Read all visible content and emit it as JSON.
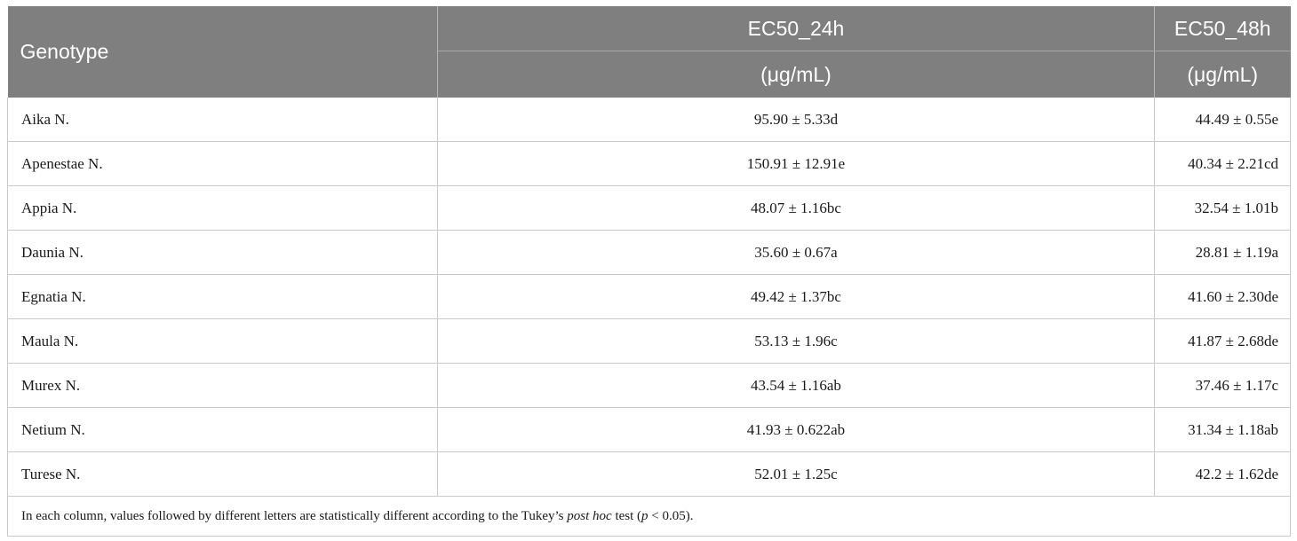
{
  "table": {
    "headers": {
      "genotype": "Genotype",
      "ec50_24h": "EC50_24h",
      "ec50_24h_unit": "(μg/mL)",
      "ec50_48h": "EC50_48h",
      "ec50_48h_unit": "(μg/mL)"
    },
    "rows": [
      {
        "genotype": "Aika N.",
        "ec50_24h": "95.90 ± 5.33d",
        "ec50_48h": "44.49 ± 0.55e"
      },
      {
        "genotype": "Apenestae N.",
        "ec50_24h": "150.91 ± 12.91e",
        "ec50_48h": "40.34 ± 2.21cd"
      },
      {
        "genotype": "Appia N.",
        "ec50_24h": "48.07 ± 1.16bc",
        "ec50_48h": "32.54 ± 1.01b"
      },
      {
        "genotype": "Daunia N.",
        "ec50_24h": "35.60 ± 0.67a",
        "ec50_48h": "28.81 ± 1.19a"
      },
      {
        "genotype": "Egnatia N.",
        "ec50_24h": "49.42 ± 1.37bc",
        "ec50_48h": "41.60 ± 2.30de"
      },
      {
        "genotype": "Maula N.",
        "ec50_24h": "53.13 ± 1.96c",
        "ec50_48h": "41.87 ± 2.68de"
      },
      {
        "genotype": "Murex N.",
        "ec50_24h": "43.54 ± 1.16ab",
        "ec50_48h": "37.46 ± 1.17c"
      },
      {
        "genotype": "Netium N.",
        "ec50_24h": "41.93 ± 0.622ab",
        "ec50_48h": "31.34 ± 1.18ab"
      },
      {
        "genotype": "Turese N.",
        "ec50_24h": "52.01 ± 1.25c",
        "ec50_48h": "42.2 ± 1.62de"
      }
    ],
    "footnote": {
      "prefix": "In each column, values followed by different letters are statistically different according to the Tukey’s ",
      "italic1": "post hoc",
      "middle": " test (",
      "italic2": "p",
      "suffix": " < 0.05)."
    }
  }
}
